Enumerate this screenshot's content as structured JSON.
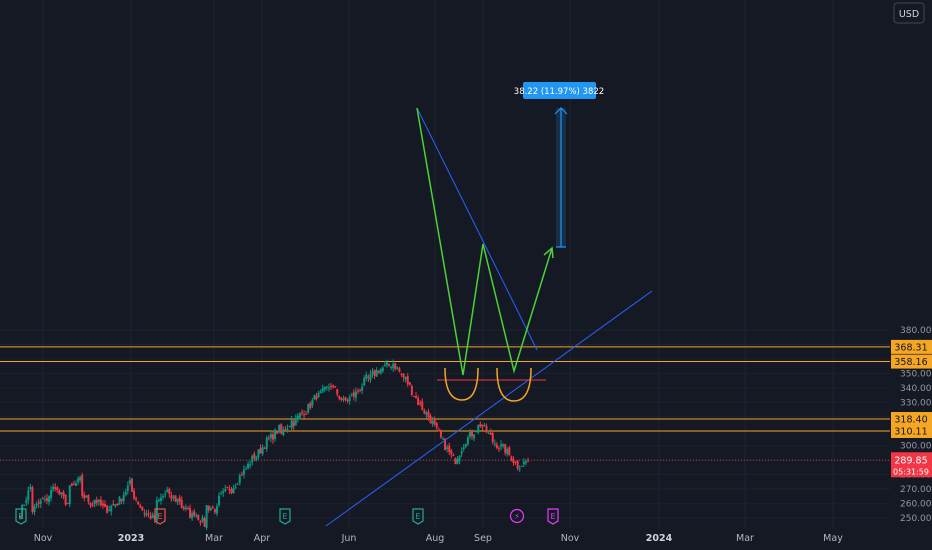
{
  "currency_button": "USD",
  "colors": {
    "background": "#151924",
    "up": "#089981",
    "down": "#f23645",
    "level_line": "#f5a623",
    "trend_line": "#2962ff",
    "pattern_line": "#4cd137",
    "measure": "#2196f3"
  },
  "measure_label": "38.22 (11.97%) 3822",
  "current_price": {
    "value": "289.85",
    "countdown": "05:31:59"
  },
  "chart_data": {
    "type": "candlestick",
    "y_axis": {
      "min": 243,
      "max": 384,
      "ticks": [
        {
          "value": 380,
          "label": "380.00"
        },
        {
          "value": 370,
          "label": "370.00"
        },
        {
          "value": 360,
          "label": "360.00"
        },
        {
          "value": 350,
          "label": "350.00"
        },
        {
          "value": 340,
          "label": "340.00"
        },
        {
          "value": 330,
          "label": "330.00"
        },
        {
          "value": 320,
          "label": "320.00"
        },
        {
          "value": 310,
          "label": "310.00"
        },
        {
          "value": 300,
          "label": "300.00"
        },
        {
          "value": 290,
          "label": "290.00"
        },
        {
          "value": 280,
          "label": "280.00"
        },
        {
          "value": 270,
          "label": "270.00"
        },
        {
          "value": 260,
          "label": "260.00"
        },
        {
          "value": 250,
          "label": "250.00"
        }
      ]
    },
    "x_axis": {
      "labels": [
        {
          "label": "Nov",
          "bold": false
        },
        {
          "label": "2023",
          "bold": true
        },
        {
          "label": "Mar",
          "bold": false
        },
        {
          "label": "Apr",
          "bold": false
        },
        {
          "label": "Jun",
          "bold": false
        },
        {
          "label": "Aug",
          "bold": false
        },
        {
          "label": "Sep",
          "bold": false
        },
        {
          "label": "Nov",
          "bold": false
        },
        {
          "label": "2024",
          "bold": true
        },
        {
          "label": "Mar",
          "bold": false
        },
        {
          "label": "May",
          "bold": false
        }
      ]
    },
    "horizontal_levels": [
      {
        "value": 368.31,
        "label": "368.31"
      },
      {
        "value": 358.16,
        "label": "358.16"
      },
      {
        "value": 318.4,
        "label": "318.40"
      },
      {
        "value": 310.11,
        "label": "310.11"
      }
    ],
    "price_path": [
      [
        253,
        275
      ],
      [
        255,
        264
      ],
      [
        261,
        275
      ],
      [
        268,
        258
      ],
      [
        270,
        277
      ],
      [
        266,
        258
      ],
      [
        263,
        254
      ],
      [
        256,
        262
      ],
      [
        262,
        276
      ],
      [
        268,
        253
      ],
      [
        254,
        248
      ],
      [
        260,
        270
      ],
      [
        264,
        262
      ],
      [
        258,
        250
      ],
      [
        254,
        244
      ],
      [
        258,
        255
      ],
      [
        263,
        272
      ],
      [
        270,
        283
      ],
      [
        282,
        295
      ],
      [
        293,
        305
      ],
      [
        304,
        313
      ],
      [
        308,
        319
      ],
      [
        316,
        326
      ],
      [
        324,
        337
      ],
      [
        334,
        342
      ],
      [
        342,
        330
      ],
      [
        330,
        336
      ],
      [
        336,
        348
      ],
      [
        346,
        354
      ],
      [
        353,
        357
      ],
      [
        357,
        345
      ],
      [
        346,
        330
      ],
      [
        330,
        318
      ],
      [
        318,
        302
      ],
      [
        302,
        288
      ],
      [
        290,
        307
      ],
      [
        305,
        315
      ],
      [
        315,
        304
      ],
      [
        303,
        297
      ],
      [
        297,
        286
      ],
      [
        286,
        290
      ]
    ],
    "events": [
      {
        "label": "E",
        "kind": "earnings"
      },
      {
        "label": "E",
        "kind": "earnings-down"
      },
      {
        "label": "E",
        "kind": "earnings"
      },
      {
        "label": "E",
        "kind": "earnings"
      },
      {
        "label": "⚡",
        "kind": "split"
      },
      {
        "label": "E",
        "kind": "earnings-upcoming"
      }
    ]
  }
}
